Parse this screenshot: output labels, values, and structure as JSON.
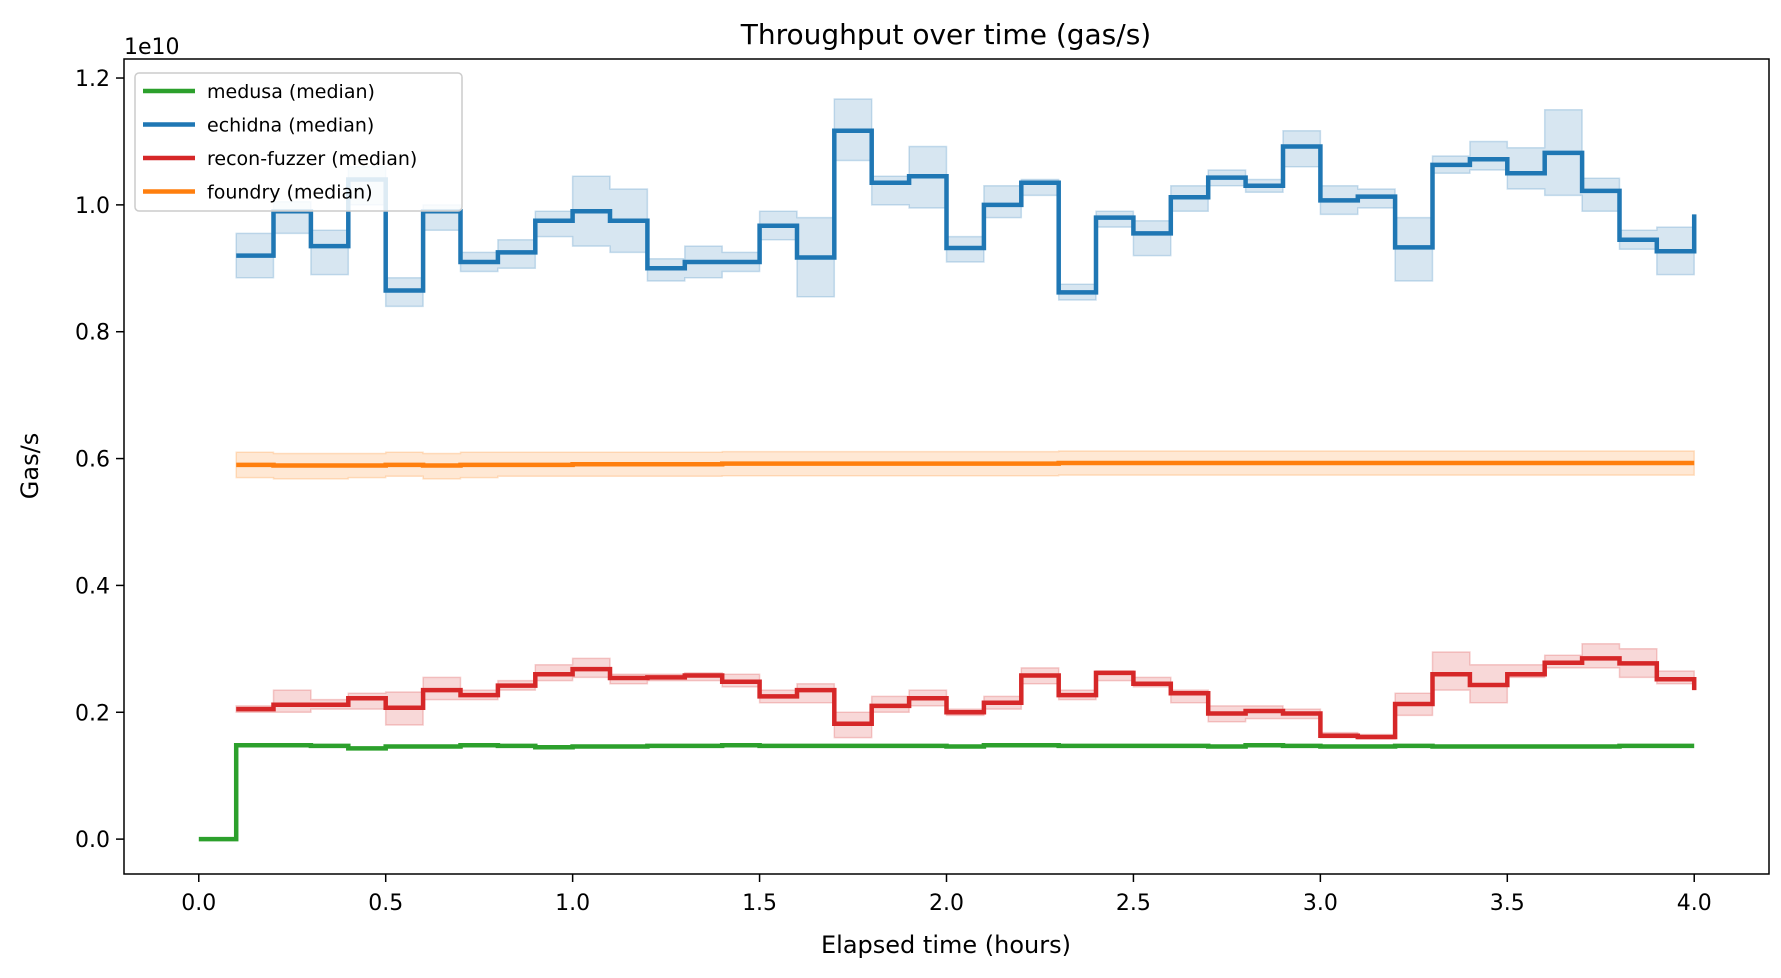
{
  "chart_data": {
    "type": "line",
    "step": "post",
    "title": "Throughput over time (gas/s)",
    "xlabel": "Elapsed time (hours)",
    "ylabel": "Gas/s",
    "offset_text": "1e10",
    "scale": 10000000000,
    "xlim": [
      -0.2,
      4.2
    ],
    "ylim": [
      -0.055,
      1.23
    ],
    "x_ticks": [
      0.0,
      0.5,
      1.0,
      1.5,
      2.0,
      2.5,
      3.0,
      3.5,
      4.0
    ],
    "x_tick_labels": [
      "0.0",
      "0.5",
      "1.0",
      "1.5",
      "2.0",
      "2.5",
      "3.0",
      "3.5",
      "4.0"
    ],
    "y_ticks": [
      0.0,
      0.2,
      0.4,
      0.6,
      0.8,
      1.0,
      1.2
    ],
    "y_tick_labels": [
      "0.0",
      "0.2",
      "0.4",
      "0.6",
      "0.8",
      "1.0",
      "1.2"
    ],
    "grid": false,
    "legend_position": "top-left",
    "series": [
      {
        "name": "medusa (median)",
        "color": "#2ca02c",
        "x": [
          0.0,
          0.1,
          0.2,
          0.3,
          0.4,
          0.5,
          0.6,
          0.7,
          0.8,
          0.9,
          1.0,
          1.1,
          1.2,
          1.3,
          1.4,
          1.5,
          1.6,
          1.7,
          1.8,
          1.9,
          2.0,
          2.1,
          2.2,
          2.3,
          2.4,
          2.5,
          2.6,
          2.7,
          2.8,
          2.9,
          3.0,
          3.1,
          3.2,
          3.3,
          3.4,
          3.5,
          3.6,
          3.7,
          3.8,
          3.9,
          4.0
        ],
        "y": [
          0.0,
          0.148,
          0.148,
          0.147,
          0.143,
          0.146,
          0.146,
          0.148,
          0.147,
          0.145,
          0.146,
          0.146,
          0.147,
          0.147,
          0.148,
          0.147,
          0.147,
          0.147,
          0.147,
          0.147,
          0.146,
          0.148,
          0.148,
          0.147,
          0.147,
          0.147,
          0.147,
          0.146,
          0.148,
          0.147,
          0.146,
          0.146,
          0.147,
          0.146,
          0.146,
          0.146,
          0.146,
          0.146,
          0.147,
          0.147,
          0.147
        ],
        "band_low": [],
        "band_high": []
      },
      {
        "name": "echidna (median)",
        "color": "#1f77b4",
        "x": [
          0.1,
          0.2,
          0.3,
          0.4,
          0.5,
          0.6,
          0.7,
          0.8,
          0.9,
          1.0,
          1.1,
          1.2,
          1.3,
          1.4,
          1.5,
          1.6,
          1.7,
          1.8,
          1.9,
          2.0,
          2.1,
          2.2,
          2.3,
          2.4,
          2.5,
          2.6,
          2.7,
          2.8,
          2.9,
          3.0,
          3.1,
          3.2,
          3.3,
          3.4,
          3.5,
          3.6,
          3.7,
          3.8,
          3.9,
          4.0
        ],
        "y": [
          0.92,
          0.99,
          0.935,
          1.04,
          0.865,
          0.99,
          0.91,
          0.925,
          0.975,
          0.99,
          0.975,
          0.9,
          0.91,
          0.91,
          0.967,
          0.917,
          1.117,
          1.035,
          1.045,
          0.932,
          1.0,
          1.035,
          0.862,
          0.98,
          0.955,
          1.012,
          1.043,
          1.03,
          1.092,
          1.007,
          1.013,
          0.933,
          1.063,
          1.072,
          1.05,
          1.082,
          1.022,
          0.945,
          0.927,
          0.985
        ],
        "band_low": [
          0.885,
          0.955,
          0.89,
          1.0,
          0.84,
          0.96,
          0.895,
          0.9,
          0.95,
          0.935,
          0.925,
          0.88,
          0.885,
          0.895,
          0.945,
          0.855,
          1.07,
          1.0,
          0.995,
          0.91,
          0.98,
          1.015,
          0.85,
          0.965,
          0.92,
          0.99,
          1.03,
          1.02,
          1.06,
          0.985,
          0.995,
          0.88,
          1.05,
          1.055,
          1.025,
          1.015,
          0.99,
          0.93,
          0.89,
          0.985
        ],
        "band_high": [
          0.955,
          1.005,
          0.96,
          1.06,
          0.885,
          1.0,
          0.925,
          0.945,
          0.99,
          1.045,
          1.025,
          0.915,
          0.935,
          0.925,
          0.99,
          0.98,
          1.167,
          1.045,
          1.092,
          0.95,
          1.03,
          1.04,
          0.875,
          0.99,
          0.975,
          1.03,
          1.055,
          1.04,
          1.117,
          1.03,
          1.025,
          0.98,
          1.077,
          1.1,
          1.09,
          1.15,
          1.042,
          0.96,
          0.965,
          0.985
        ]
      },
      {
        "name": "recon-fuzzer (median)",
        "color": "#d62728",
        "x": [
          0.1,
          0.2,
          0.3,
          0.4,
          0.5,
          0.6,
          0.7,
          0.8,
          0.9,
          1.0,
          1.1,
          1.2,
          1.3,
          1.4,
          1.5,
          1.6,
          1.7,
          1.8,
          1.9,
          2.0,
          2.1,
          2.2,
          2.3,
          2.4,
          2.5,
          2.6,
          2.7,
          2.8,
          2.9,
          3.0,
          3.1,
          3.2,
          3.3,
          3.4,
          3.5,
          3.6,
          3.7,
          3.8,
          3.9,
          4.0
        ],
        "y": [
          0.205,
          0.212,
          0.212,
          0.222,
          0.207,
          0.235,
          0.227,
          0.242,
          0.26,
          0.268,
          0.254,
          0.255,
          0.258,
          0.248,
          0.225,
          0.235,
          0.182,
          0.21,
          0.222,
          0.2,
          0.215,
          0.258,
          0.227,
          0.262,
          0.245,
          0.23,
          0.198,
          0.202,
          0.198,
          0.163,
          0.161,
          0.213,
          0.26,
          0.243,
          0.26,
          0.278,
          0.285,
          0.277,
          0.252,
          0.235
        ],
        "band_low": [
          0.2,
          0.2,
          0.205,
          0.205,
          0.18,
          0.22,
          0.22,
          0.235,
          0.25,
          0.255,
          0.245,
          0.25,
          0.25,
          0.24,
          0.215,
          0.215,
          0.16,
          0.2,
          0.21,
          0.195,
          0.205,
          0.245,
          0.22,
          0.25,
          0.24,
          0.215,
          0.185,
          0.19,
          0.19,
          0.16,
          0.158,
          0.195,
          0.235,
          0.215,
          0.255,
          0.27,
          0.27,
          0.255,
          0.245,
          0.235
        ],
        "band_high": [
          0.21,
          0.235,
          0.22,
          0.23,
          0.232,
          0.255,
          0.235,
          0.25,
          0.275,
          0.285,
          0.26,
          0.26,
          0.262,
          0.26,
          0.235,
          0.245,
          0.2,
          0.225,
          0.235,
          0.205,
          0.225,
          0.27,
          0.235,
          0.265,
          0.255,
          0.235,
          0.21,
          0.21,
          0.205,
          0.168,
          0.165,
          0.23,
          0.295,
          0.275,
          0.275,
          0.29,
          0.308,
          0.3,
          0.265,
          0.235
        ]
      },
      {
        "name": "foundry (median)",
        "color": "#ff7f0e",
        "x": [
          0.1,
          0.2,
          0.3,
          0.4,
          0.5,
          0.6,
          0.7,
          0.8,
          0.9,
          1.0,
          1.1,
          1.2,
          1.3,
          1.4,
          1.5,
          1.6,
          1.7,
          1.8,
          1.9,
          2.0,
          2.1,
          2.2,
          2.3,
          2.4,
          2.5,
          2.6,
          2.7,
          2.8,
          2.9,
          3.0,
          3.1,
          3.2,
          3.3,
          3.4,
          3.5,
          3.6,
          3.7,
          3.8,
          3.9,
          4.0
        ],
        "y": [
          0.59,
          0.589,
          0.589,
          0.589,
          0.59,
          0.589,
          0.59,
          0.59,
          0.59,
          0.591,
          0.591,
          0.591,
          0.591,
          0.592,
          0.592,
          0.592,
          0.592,
          0.592,
          0.592,
          0.592,
          0.592,
          0.592,
          0.593,
          0.593,
          0.593,
          0.593,
          0.593,
          0.593,
          0.593,
          0.593,
          0.593,
          0.593,
          0.593,
          0.593,
          0.593,
          0.593,
          0.593,
          0.593,
          0.593,
          0.593
        ],
        "band_low": [
          0.57,
          0.568,
          0.568,
          0.57,
          0.572,
          0.568,
          0.57,
          0.572,
          0.572,
          0.572,
          0.572,
          0.572,
          0.572,
          0.573,
          0.573,
          0.573,
          0.573,
          0.573,
          0.573,
          0.573,
          0.573,
          0.573,
          0.574,
          0.574,
          0.574,
          0.574,
          0.574,
          0.574,
          0.574,
          0.574,
          0.574,
          0.574,
          0.574,
          0.574,
          0.574,
          0.574,
          0.574,
          0.574,
          0.574,
          0.574
        ],
        "band_high": [
          0.61,
          0.608,
          0.608,
          0.608,
          0.61,
          0.608,
          0.61,
          0.61,
          0.61,
          0.61,
          0.61,
          0.61,
          0.61,
          0.611,
          0.611,
          0.611,
          0.611,
          0.611,
          0.611,
          0.611,
          0.611,
          0.611,
          0.612,
          0.612,
          0.612,
          0.612,
          0.612,
          0.612,
          0.612,
          0.612,
          0.612,
          0.612,
          0.612,
          0.612,
          0.612,
          0.612,
          0.612,
          0.612,
          0.612,
          0.612
        ]
      }
    ]
  }
}
